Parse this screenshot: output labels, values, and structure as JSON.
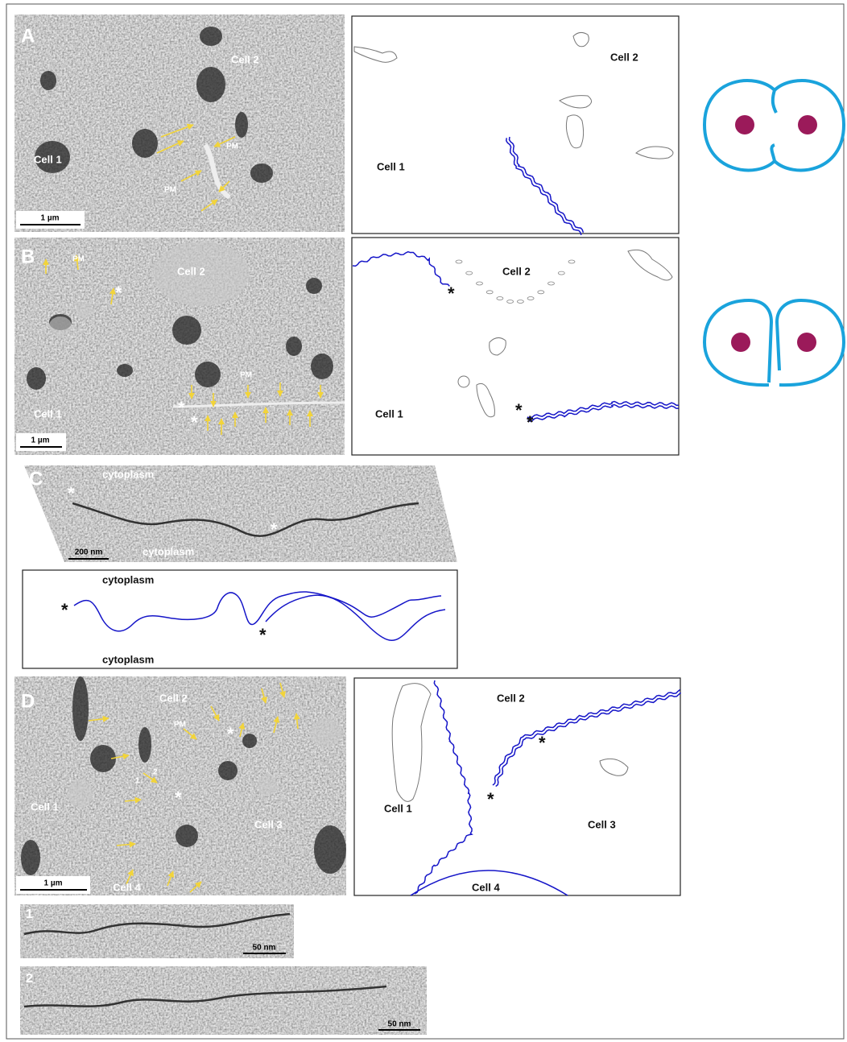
{
  "panel_A": {
    "label": "A",
    "micrograph": {
      "labels": [
        "Cell 2",
        "Cell 1",
        "PM",
        "PM"
      ],
      "scale_bar": "1 µm"
    },
    "drawing": {
      "labels": [
        "Cell 2",
        "Cell 1"
      ]
    }
  },
  "panel_B": {
    "label": "B",
    "micrograph": {
      "labels": [
        "PM",
        "*",
        "Cell 2",
        "PM",
        "Cell 1",
        "*",
        "*"
      ],
      "scale_bar": "1 µm"
    },
    "drawing": {
      "labels": [
        "Cell 2",
        "*",
        "Cell 1",
        "*",
        "*"
      ]
    }
  },
  "panel_C": {
    "label": "C",
    "micrograph": {
      "labels": [
        "*",
        "cytoplasm",
        "*",
        "cytoplasm"
      ],
      "scale_bar": "200 nm"
    },
    "drawing": {
      "labels": [
        "cytoplasm",
        "*",
        "*",
        "cytoplasm"
      ]
    }
  },
  "panel_D": {
    "label": "D",
    "micrograph": {
      "labels": [
        "Cell 2",
        "PM",
        "*",
        "1",
        "2",
        "*",
        "Cell 1",
        "Cell 3",
        "Cell 4"
      ],
      "scale_bar": "1 µm"
    },
    "drawing": {
      "labels": [
        "Cell 2",
        "*",
        "*",
        "Cell 1",
        "Cell 3",
        "Cell 4"
      ]
    },
    "insets": [
      {
        "label": "1",
        "scale_bar": "50 nm"
      },
      {
        "label": "2",
        "scale_bar": "50 nm"
      }
    ]
  }
}
